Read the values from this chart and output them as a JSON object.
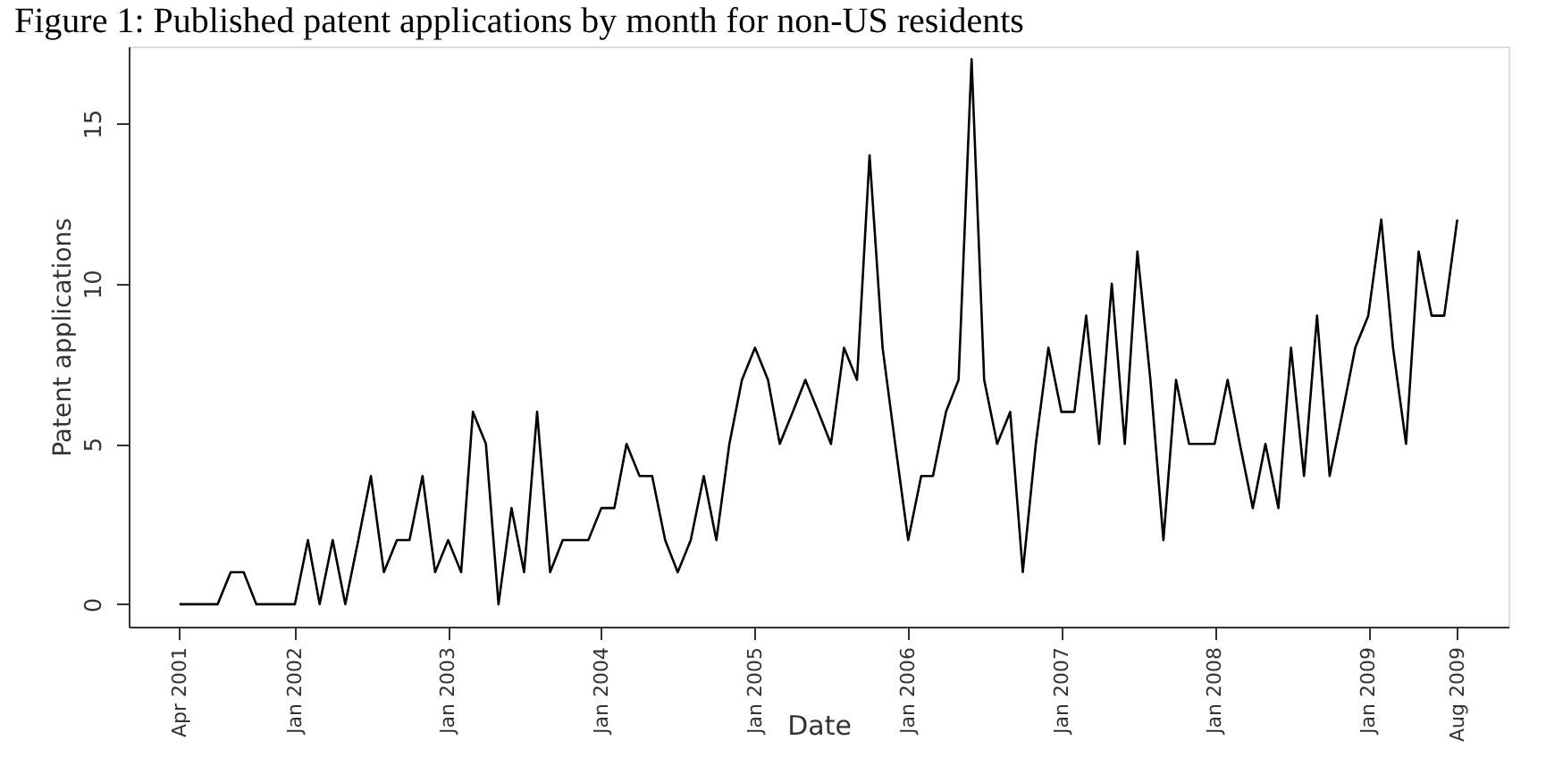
{
  "chart_data": {
    "type": "line",
    "title": "Figure 1: Published patent applications by month for non-US residents",
    "xlabel": "Date",
    "ylabel": "Patent applications",
    "x": [
      "2001-04",
      "2001-05",
      "2001-06",
      "2001-07",
      "2001-08",
      "2001-09",
      "2001-10",
      "2001-11",
      "2001-12",
      "2002-01",
      "2002-02",
      "2002-03",
      "2002-04",
      "2002-05",
      "2002-06",
      "2002-07",
      "2002-08",
      "2002-09",
      "2002-10",
      "2002-11",
      "2002-12",
      "2003-01",
      "2003-02",
      "2003-03",
      "2003-04",
      "2003-05",
      "2003-06",
      "2003-07",
      "2003-08",
      "2003-09",
      "2003-10",
      "2003-11",
      "2003-12",
      "2004-01",
      "2004-02",
      "2004-03",
      "2004-04",
      "2004-05",
      "2004-06",
      "2004-07",
      "2004-08",
      "2004-09",
      "2004-10",
      "2004-11",
      "2004-12",
      "2005-01",
      "2005-02",
      "2005-03",
      "2005-04",
      "2005-05",
      "2005-06",
      "2005-07",
      "2005-08",
      "2005-09",
      "2005-10",
      "2005-11",
      "2005-12",
      "2006-01",
      "2006-02",
      "2006-03",
      "2006-04",
      "2006-05",
      "2006-06",
      "2006-07",
      "2006-08",
      "2006-09",
      "2006-10",
      "2006-11",
      "2006-12",
      "2007-01",
      "2007-02",
      "2007-03",
      "2007-04",
      "2007-05",
      "2007-06",
      "2007-07",
      "2007-08",
      "2007-09",
      "2007-10",
      "2007-11",
      "2007-12",
      "2008-01",
      "2008-02",
      "2008-03",
      "2008-04",
      "2008-05",
      "2008-06",
      "2008-07",
      "2008-08",
      "2008-09",
      "2008-10",
      "2008-11",
      "2008-12",
      "2009-01",
      "2009-02",
      "2009-03",
      "2009-04",
      "2009-05",
      "2009-06",
      "2009-07",
      "2009-08"
    ],
    "series": [
      {
        "color": "#000000",
        "values": [
          0,
          0,
          0,
          0,
          1,
          1,
          0,
          0,
          0,
          0,
          2,
          0,
          2,
          0,
          2,
          4,
          1,
          2,
          2,
          4,
          1,
          2,
          1,
          6,
          5,
          0,
          3,
          1,
          6,
          1,
          2,
          2,
          2,
          3,
          3,
          5,
          4,
          4,
          2,
          1,
          2,
          4,
          2,
          5,
          7,
          8,
          7,
          5,
          6,
          7,
          6,
          5,
          8,
          7,
          14,
          8,
          5,
          2,
          4,
          4,
          6,
          7,
          17,
          7,
          5,
          6,
          1,
          5,
          8,
          6,
          6,
          9,
          5,
          10,
          5,
          11,
          7,
          2,
          7,
          5,
          5,
          5,
          7,
          5,
          3,
          5,
          3,
          8,
          4,
          9,
          4,
          6,
          8,
          9,
          12,
          8,
          5,
          11,
          9,
          9,
          12
        ]
      }
    ],
    "xlim": [
      "2000-12",
      "2009-12"
    ],
    "xticks": [
      {
        "value": "2001-04",
        "label": "Apr 2001"
      },
      {
        "value": "2002-01",
        "label": "Jan 2002"
      },
      {
        "value": "2003-01",
        "label": "Jan 2003"
      },
      {
        "value": "2004-01",
        "label": "Jan 2004"
      },
      {
        "value": "2005-01",
        "label": "Jan 2005"
      },
      {
        "value": "2006-01",
        "label": "Jan 2006"
      },
      {
        "value": "2007-01",
        "label": "Jan 2007"
      },
      {
        "value": "2008-01",
        "label": "Jan 2008"
      },
      {
        "value": "2009-01",
        "label": "Jan 2009"
      },
      {
        "value": "2009-08",
        "label": "Aug 2009"
      }
    ],
    "ylim": [
      -0.7,
      17.4
    ],
    "yticks": [
      0,
      5,
      10,
      15
    ],
    "grid": false,
    "marker": "none",
    "line_style": "solid"
  }
}
